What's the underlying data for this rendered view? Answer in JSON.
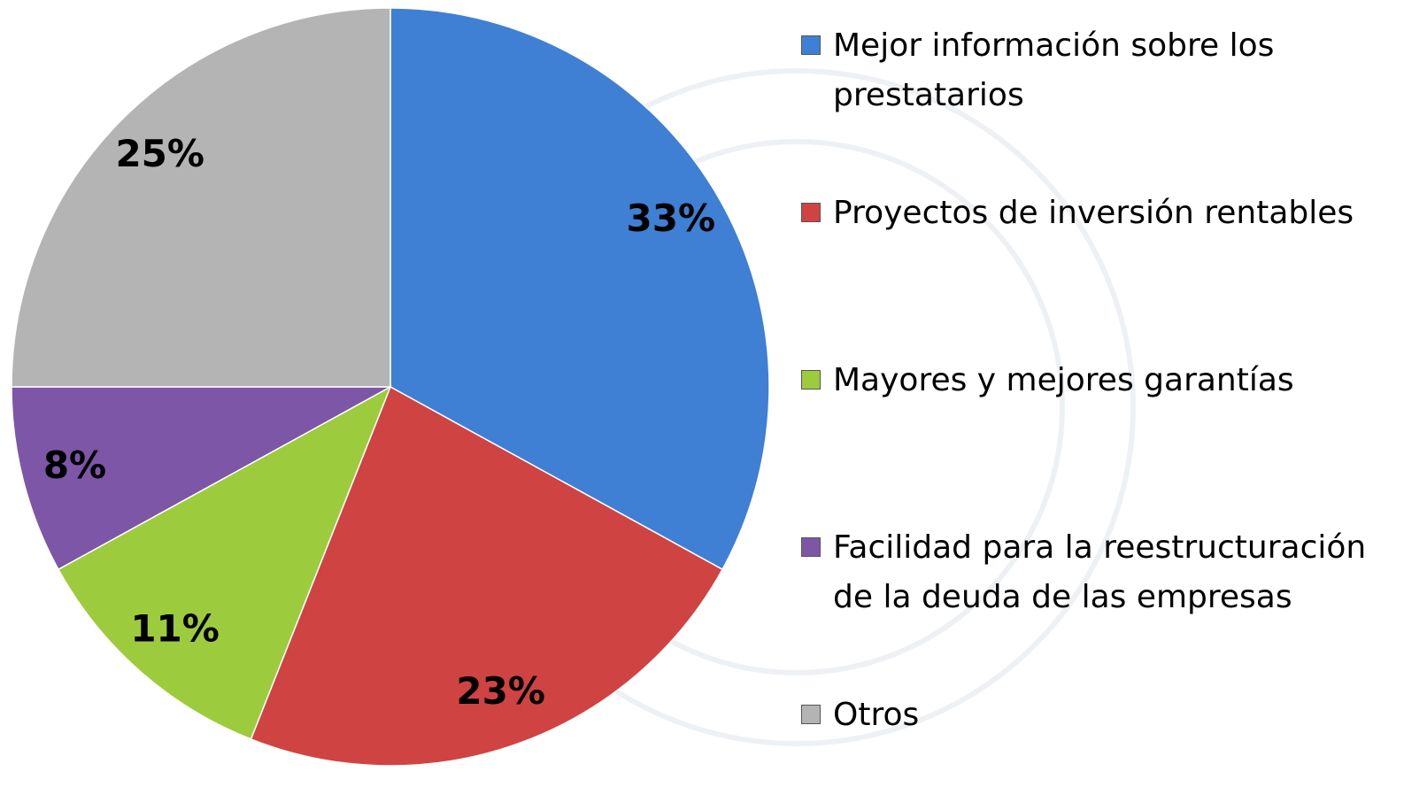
{
  "chart_data": {
    "type": "pie",
    "categories": [
      "Mejor información sobre los prestatarios",
      "Proyectos de inversión rentables",
      "Mayores y mejores garantías",
      "Facilidad para la reestructuración de la deuda de las empresas",
      "Otros"
    ],
    "values": [
      33,
      23,
      11,
      8,
      25
    ],
    "value_labels": [
      "33%",
      "23%",
      "11%",
      "8%",
      "25%"
    ],
    "colors": [
      "#3f7fd4",
      "#d04343",
      "#9dcb3e",
      "#7d56a8",
      "#b4b4b4"
    ],
    "legend": "right"
  }
}
